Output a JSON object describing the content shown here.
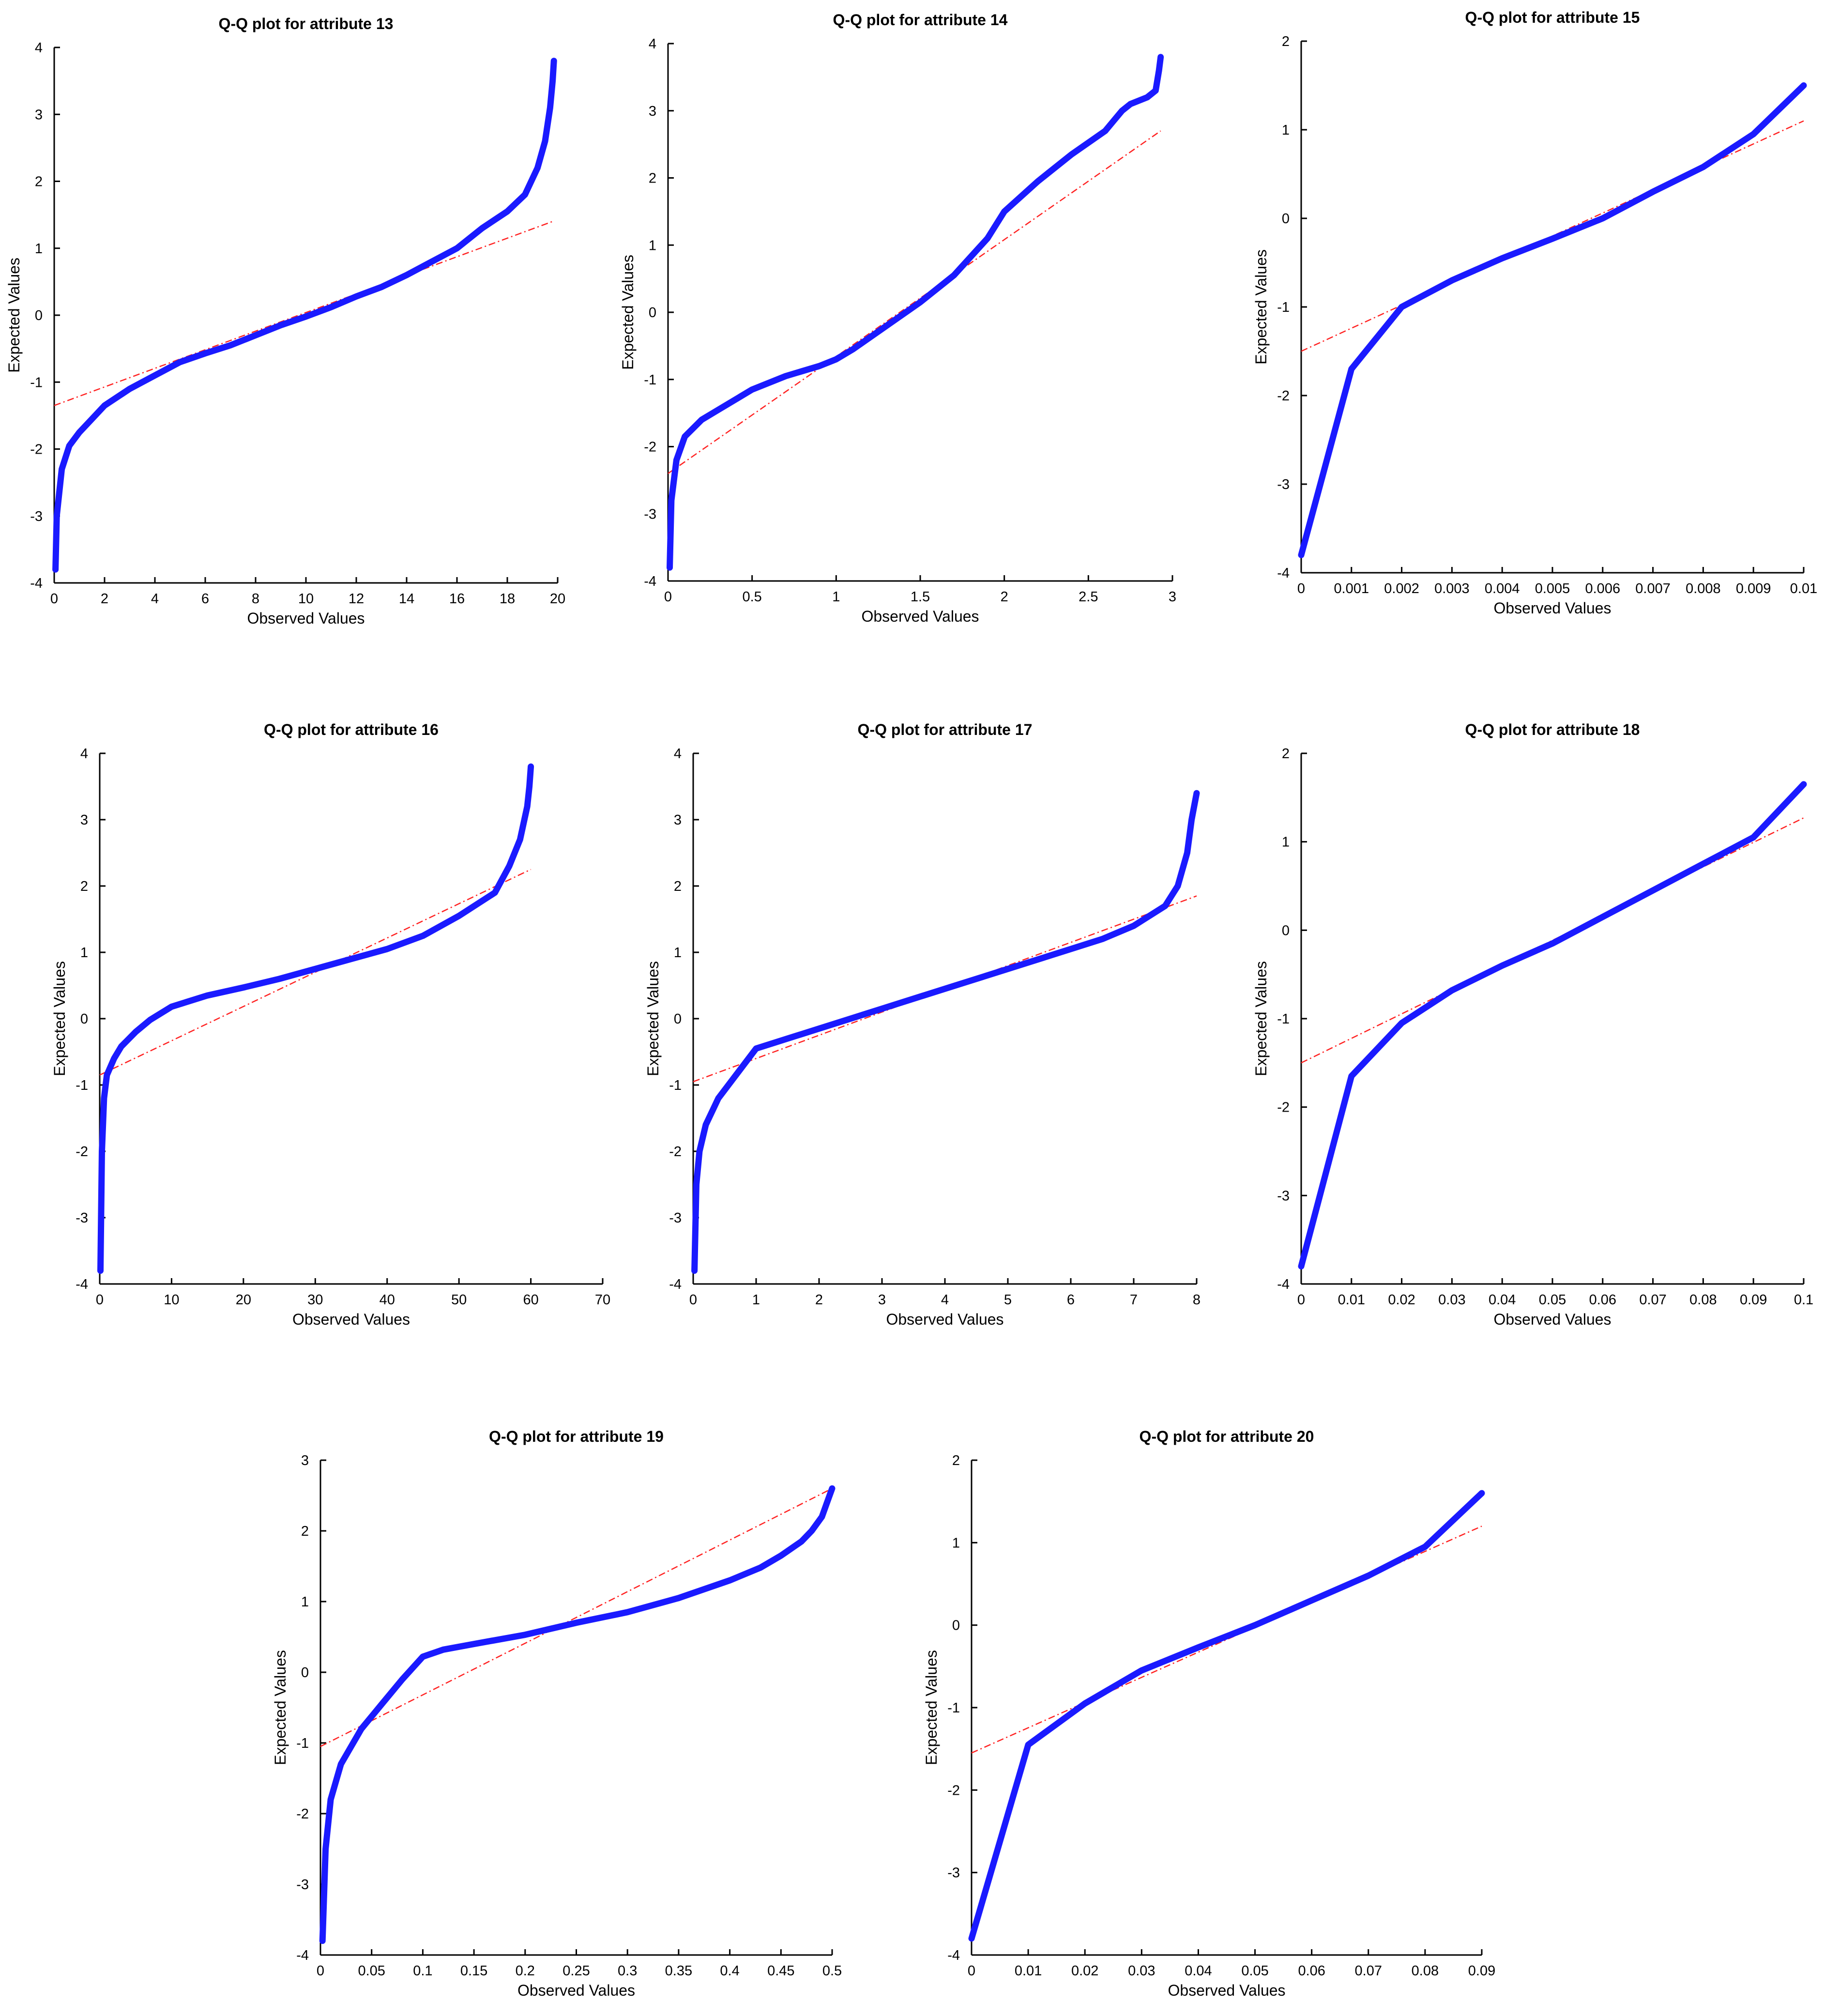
{
  "figure": {
    "y_axis_label": "Expected Values",
    "x_axis_label": "Observed Values"
  },
  "colors": {
    "qq_curve": "#1a1aff",
    "reference_line": "#ff2222"
  },
  "chart_data": [
    {
      "type": "line",
      "title": "Q-Q plot for attribute 13",
      "xlabel": "Observed Values",
      "ylabel": "Expected Values",
      "xlim": [
        0,
        20
      ],
      "ylim": [
        -4,
        4
      ],
      "xticks": [
        "0",
        "2",
        "4",
        "6",
        "8",
        "10",
        "12",
        "14",
        "16",
        "18",
        "20"
      ],
      "yticks": [
        "-4",
        "-3",
        "-2",
        "-1",
        "0",
        "1",
        "2",
        "3",
        "4"
      ],
      "grid": false,
      "series": [
        {
          "role": "qq",
          "x": [
            0.05,
            0.1,
            0.3,
            0.6,
            1.0,
            1.5,
            2.0,
            3.0,
            4.0,
            5.0,
            6.0,
            7.0,
            8.0,
            9.0,
            10.0,
            11.0,
            12.0,
            13.0,
            14.0,
            15.0,
            16.0,
            17.0,
            18.0,
            18.7,
            19.2,
            19.5,
            19.7,
            19.8,
            19.85
          ],
          "y": [
            -3.8,
            -3.0,
            -2.3,
            -1.95,
            -1.75,
            -1.55,
            -1.35,
            -1.1,
            -0.9,
            -0.7,
            -0.57,
            -0.45,
            -0.3,
            -0.15,
            -0.02,
            0.12,
            0.28,
            0.42,
            0.6,
            0.8,
            1.0,
            1.3,
            1.55,
            1.8,
            2.2,
            2.6,
            3.1,
            3.5,
            3.8
          ]
        },
        {
          "role": "reference",
          "style": "dashdot",
          "x": [
            0,
            19.8
          ],
          "y": [
            -1.35,
            1.4
          ]
        }
      ]
    },
    {
      "type": "line",
      "title": "Q-Q plot for attribute 14",
      "xlabel": "Observed Values",
      "ylabel": "Expected Values",
      "xlim": [
        0,
        3
      ],
      "ylim": [
        -4,
        4
      ],
      "xticks": [
        "0",
        "0.5",
        "1",
        "1.5",
        "2",
        "2.5",
        "3"
      ],
      "yticks": [
        "-4",
        "-3",
        "-2",
        "-1",
        "0",
        "1",
        "2",
        "3",
        "4"
      ],
      "grid": false,
      "series": [
        {
          "role": "qq",
          "x": [
            0.01,
            0.02,
            0.05,
            0.1,
            0.2,
            0.3,
            0.5,
            0.7,
            0.9,
            1.0,
            1.1,
            1.3,
            1.5,
            1.7,
            1.9,
            2.0,
            2.2,
            2.4,
            2.6,
            2.7,
            2.75,
            2.85,
            2.9,
            2.92,
            2.93
          ],
          "y": [
            -3.8,
            -2.8,
            -2.2,
            -1.85,
            -1.6,
            -1.45,
            -1.15,
            -0.95,
            -0.8,
            -0.7,
            -0.55,
            -0.2,
            0.15,
            0.55,
            1.1,
            1.5,
            1.95,
            2.35,
            2.7,
            3.0,
            3.1,
            3.2,
            3.3,
            3.6,
            3.8
          ]
        },
        {
          "role": "reference",
          "style": "dashdot",
          "x": [
            0,
            2.93
          ],
          "y": [
            -2.4,
            2.7
          ]
        }
      ]
    },
    {
      "type": "line",
      "title": "Q-Q plot for attribute 15",
      "xlabel": "Observed Values",
      "ylabel": "Expected Values",
      "xlim": [
        0,
        0.01
      ],
      "ylim": [
        -4,
        2
      ],
      "xticks": [
        "0",
        "0.001",
        "0.002",
        "0.003",
        "0.004",
        "0.005",
        "0.006",
        "0.007",
        "0.008",
        "0.009",
        "0.01"
      ],
      "yticks": [
        "-4",
        "-3",
        "-2",
        "-1",
        "0",
        "1",
        "2"
      ],
      "grid": false,
      "series": [
        {
          "role": "qq",
          "x": [
            0,
            0.001,
            0.002,
            0.003,
            0.004,
            0.005,
            0.006,
            0.007,
            0.008,
            0.009,
            0.01
          ],
          "y": [
            -3.8,
            -1.7,
            -1.0,
            -0.7,
            -0.45,
            -0.23,
            0.0,
            0.3,
            0.58,
            0.95,
            1.5
          ]
        },
        {
          "role": "reference",
          "style": "dashdot",
          "x": [
            0,
            0.01
          ],
          "y": [
            -1.5,
            1.1
          ]
        }
      ]
    },
    {
      "type": "line",
      "title": "Q-Q plot for attribute 16",
      "xlabel": "Observed Values",
      "ylabel": "Expected Values",
      "xlim": [
        0,
        70
      ],
      "ylim": [
        -4,
        4
      ],
      "xticks": [
        "0",
        "10",
        "20",
        "30",
        "40",
        "50",
        "60",
        "70"
      ],
      "yticks": [
        "-4",
        "-3",
        "-2",
        "-1",
        "0",
        "1",
        "2",
        "3",
        "4"
      ],
      "grid": false,
      "series": [
        {
          "role": "qq",
          "x": [
            0.1,
            0.3,
            0.6,
            1.0,
            2.0,
            3.0,
            5.0,
            7.0,
            10.0,
            15.0,
            20.0,
            25.0,
            30.0,
            35.0,
            40.0,
            45.0,
            50.0,
            55.0,
            57.0,
            58.5,
            59.5,
            59.8,
            60.0
          ],
          "y": [
            -3.8,
            -2.0,
            -1.2,
            -0.85,
            -0.6,
            -0.42,
            -0.2,
            -0.02,
            0.18,
            0.35,
            0.47,
            0.6,
            0.75,
            0.9,
            1.05,
            1.25,
            1.55,
            1.9,
            2.3,
            2.7,
            3.2,
            3.5,
            3.8
          ]
        },
        {
          "role": "reference",
          "style": "dashdot",
          "x": [
            0,
            60
          ],
          "y": [
            -0.85,
            2.25
          ]
        }
      ]
    },
    {
      "type": "line",
      "title": "Q-Q plot for attribute 17",
      "xlabel": "Observed Values",
      "ylabel": "Expected Values",
      "xlim": [
        0,
        8
      ],
      "ylim": [
        -4,
        4
      ],
      "xticks": [
        "0",
        "1",
        "2",
        "3",
        "4",
        "5",
        "6",
        "7",
        "8"
      ],
      "yticks": [
        "-4",
        "-3",
        "-2",
        "-1",
        "0",
        "1",
        "2",
        "3",
        "4"
      ],
      "grid": false,
      "series": [
        {
          "role": "qq",
          "x": [
            0.02,
            0.05,
            0.1,
            0.2,
            0.4,
            0.6,
            0.8,
            1.0,
            1.5,
            2.0,
            3.0,
            4.0,
            5.0,
            6.0,
            6.5,
            7.0,
            7.5,
            7.7,
            7.85,
            7.92,
            8.0
          ],
          "y": [
            -3.8,
            -2.5,
            -2.0,
            -1.6,
            -1.2,
            -0.95,
            -0.7,
            -0.45,
            -0.3,
            -0.15,
            0.15,
            0.45,
            0.75,
            1.05,
            1.2,
            1.4,
            1.7,
            2.0,
            2.5,
            3.0,
            3.4
          ]
        },
        {
          "role": "reference",
          "style": "dashdot",
          "x": [
            0,
            8
          ],
          "y": [
            -0.95,
            1.85
          ]
        }
      ]
    },
    {
      "type": "line",
      "title": "Q-Q plot for attribute 18",
      "xlabel": "Observed Values",
      "ylabel": "Expected Values",
      "xlim": [
        0,
        0.1
      ],
      "ylim": [
        -4,
        2
      ],
      "xticks": [
        "0",
        "0.01",
        "0.02",
        "0.03",
        "0.04",
        "0.05",
        "0.06",
        "0.07",
        "0.08",
        "0.09",
        "0.1"
      ],
      "yticks": [
        "-4",
        "-3",
        "-2",
        "-1",
        "0",
        "1",
        "2"
      ],
      "grid": false,
      "series": [
        {
          "role": "qq",
          "x": [
            0,
            0.01,
            0.02,
            0.03,
            0.04,
            0.05,
            0.06,
            0.07,
            0.08,
            0.09,
            0.1
          ],
          "y": [
            -3.8,
            -1.65,
            -1.05,
            -0.68,
            -0.4,
            -0.15,
            0.15,
            0.45,
            0.75,
            1.05,
            1.65
          ]
        },
        {
          "role": "reference",
          "style": "dashdot",
          "x": [
            0,
            0.1
          ],
          "y": [
            -1.5,
            1.27
          ]
        }
      ]
    },
    {
      "type": "line",
      "title": "Q-Q plot for attribute 19",
      "xlabel": "Observed Values",
      "ylabel": "Expected Values",
      "xlim": [
        0,
        0.5
      ],
      "ylim": [
        -4,
        3
      ],
      "xticks": [
        "0",
        "0.05",
        "0.1",
        "0.15",
        "0.2",
        "0.25",
        "0.3",
        "0.35",
        "0.4",
        "0.45",
        "0.5"
      ],
      "yticks": [
        "-4",
        "-3",
        "-2",
        "-1",
        "0",
        "1",
        "2",
        "3"
      ],
      "grid": false,
      "series": [
        {
          "role": "qq",
          "x": [
            0.002,
            0.005,
            0.01,
            0.02,
            0.04,
            0.06,
            0.08,
            0.1,
            0.12,
            0.15,
            0.2,
            0.25,
            0.3,
            0.35,
            0.4,
            0.43,
            0.45,
            0.47,
            0.48,
            0.49,
            0.495,
            0.5
          ],
          "y": [
            -3.8,
            -2.5,
            -1.8,
            -1.3,
            -0.8,
            -0.45,
            -0.1,
            0.22,
            0.32,
            0.4,
            0.53,
            0.7,
            0.85,
            1.05,
            1.3,
            1.48,
            1.65,
            1.85,
            2.0,
            2.2,
            2.4,
            2.6
          ]
        },
        {
          "role": "reference",
          "style": "dashdot",
          "x": [
            0,
            0.5
          ],
          "y": [
            -1.05,
            2.6
          ]
        }
      ]
    },
    {
      "type": "line",
      "title": "Q-Q plot for attribute 20",
      "xlabel": "Observed Values",
      "ylabel": "Expected Values",
      "xlim": [
        0,
        0.09
      ],
      "ylim": [
        -4,
        2
      ],
      "xticks": [
        "0",
        "0.01",
        "0.02",
        "0.03",
        "0.04",
        "0.05",
        "0.06",
        "0.07",
        "0.08",
        "0.09"
      ],
      "yticks": [
        "-4",
        "-3",
        "-2",
        "-1",
        "0",
        "1",
        "2"
      ],
      "grid": false,
      "series": [
        {
          "role": "qq",
          "x": [
            0,
            0.01,
            0.02,
            0.03,
            0.04,
            0.05,
            0.06,
            0.07,
            0.08,
            0.09
          ],
          "y": [
            -3.8,
            -1.45,
            -0.95,
            -0.55,
            -0.27,
            0.0,
            0.3,
            0.6,
            0.95,
            1.6
          ]
        },
        {
          "role": "reference",
          "style": "dashdot",
          "x": [
            0,
            0.09
          ],
          "y": [
            -1.55,
            1.2
          ]
        }
      ]
    }
  ]
}
